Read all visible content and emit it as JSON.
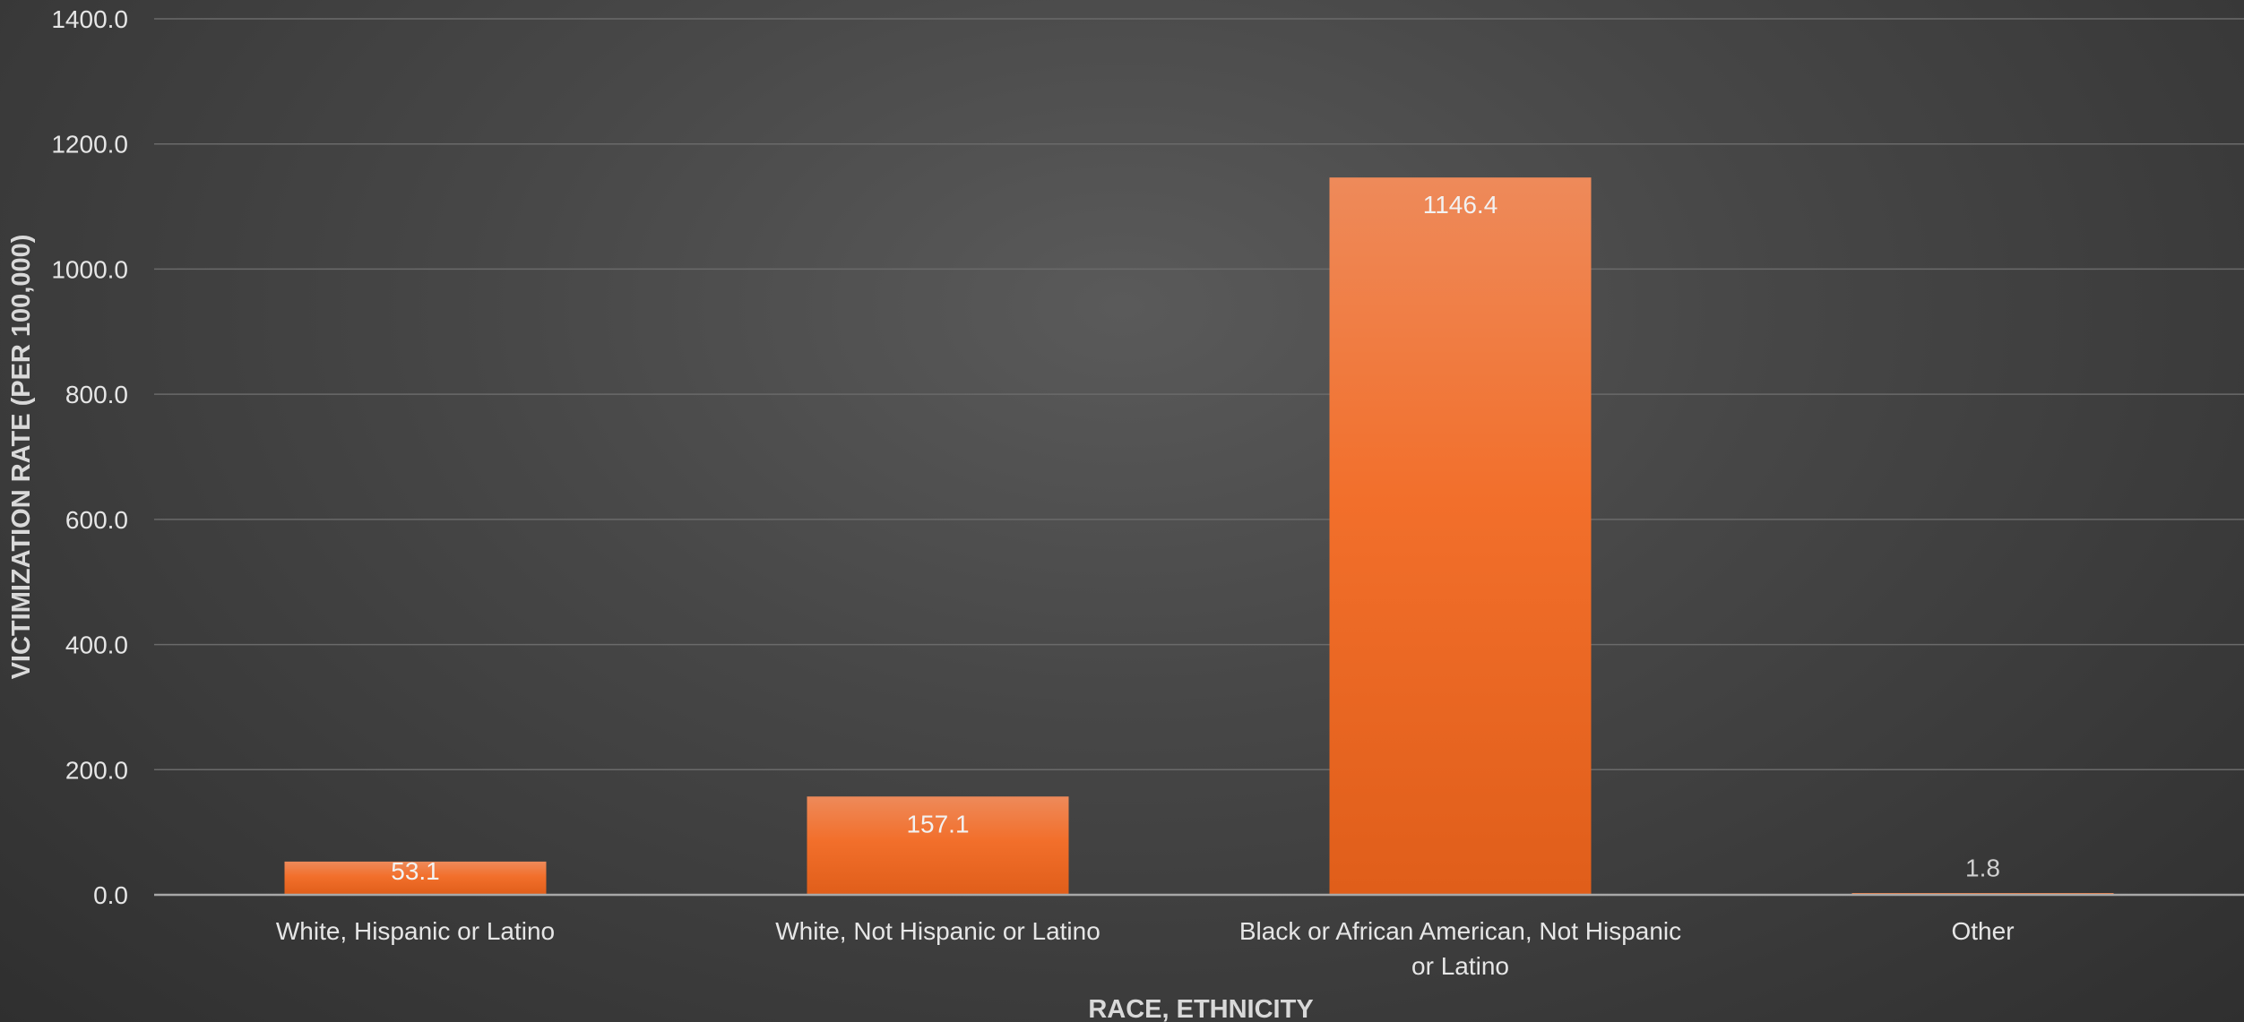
{
  "chart_data": {
    "type": "bar",
    "title": "",
    "xlabel": "RACE, ETHNICITY",
    "ylabel": "VICTIMIZATION RATE (PER 100,000)",
    "categories": [
      [
        "White, Hispanic or Latino"
      ],
      [
        "White, Not Hispanic or Latino"
      ],
      [
        "Black or African American, Not Hispanic",
        "or Latino"
      ],
      [
        "Other"
      ]
    ],
    "values": [
      53.1,
      157.1,
      1146.4,
      1.8
    ],
    "data_labels": [
      "53.1",
      "157.1",
      "1146.4",
      "1.8"
    ],
    "ylim": [
      0,
      1400
    ],
    "yticks": [
      0,
      200,
      400,
      600,
      800,
      1000,
      1200,
      1400
    ],
    "ytick_labels": [
      "0.0",
      "200.0",
      "400.0",
      "600.0",
      "800.0",
      "1000.0",
      "1200.0",
      "1400.0"
    ],
    "grid": true,
    "legend": "none",
    "colors": {
      "bar_top": "#ee8a5a",
      "bar_mid": "#f26f2b",
      "bar_bottom": "#e05e1a",
      "background": "#474747"
    }
  }
}
